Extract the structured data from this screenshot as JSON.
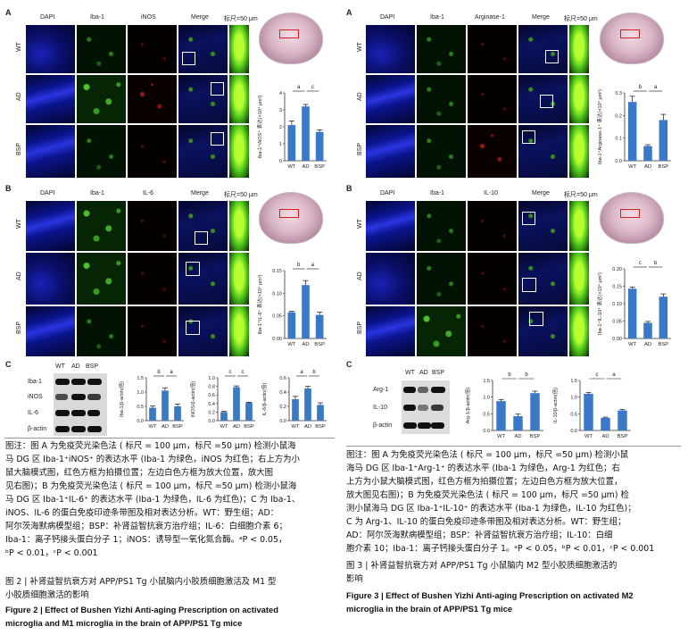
{
  "colors": {
    "dapi": "#1a23b8",
    "iba1": "#3a9a20",
    "red": "#a01818",
    "bar": "#3a78c8",
    "text": "#111111"
  },
  "left": {
    "panelA": {
      "label": "A",
      "headers": [
        "DAPI",
        "Iba-1",
        "iNOS",
        "Merge"
      ],
      "scale_text": "标尺=50 μm",
      "rows": [
        "WT",
        "AD",
        "BSP"
      ],
      "tile_scale": "100μm"
    },
    "panelB": {
      "label": "B",
      "headers": [
        "DAPI",
        "Iba-1",
        "IL-6",
        "Merge"
      ],
      "scale_text": "标尺=50 μm",
      "rows": [
        "WT",
        "AD",
        "BSP"
      ],
      "tile_scale": "100μm"
    },
    "panelC": {
      "label": "C",
      "wb_groups": [
        "WT",
        "AD",
        "BSP"
      ],
      "wb_rows": [
        "Iba-1",
        "iNOS",
        "IL-6",
        "β-actin"
      ]
    }
  },
  "right": {
    "panelA": {
      "label": "A",
      "headers": [
        "DAPI",
        "Iba-1",
        "Arginase-1",
        "Merge"
      ],
      "scale_text": "标尺=50 μm",
      "rows": [
        "WT",
        "AD",
        "BSP"
      ],
      "tile_scale": "100μm"
    },
    "panelB": {
      "label": "B",
      "headers": [
        "DAPI",
        "Iba-1",
        "IL-10",
        "Merge"
      ],
      "scale_text": "标尺=50 μm",
      "rows": [
        "WT",
        "AD",
        "BSP"
      ],
      "tile_scale": "100μm"
    },
    "panelC": {
      "label": "C",
      "wb_groups": [
        "WT",
        "AD",
        "BSP"
      ],
      "wb_rows": [
        "Arg-1",
        "IL-10",
        "β-actin"
      ]
    }
  },
  "chart_data": [
    {
      "id": "L_A",
      "type": "bar",
      "categories": [
        "WT",
        "AD",
        "BSP"
      ],
      "values": [
        2.1,
        3.2,
        1.7
      ],
      "errors": [
        0.25,
        0.12,
        0.12
      ],
      "ylabel": "Iba-1⁺iNOS⁺ 表达(×10⁴ μm²)",
      "ylim": [
        0,
        4
      ],
      "yticks": [
        "0",
        "1",
        "2",
        "3",
        "4"
      ],
      "sig": [
        {
          "from": 0,
          "to": 1,
          "label": "a"
        },
        {
          "from": 1,
          "to": 2,
          "label": "c"
        }
      ]
    },
    {
      "id": "L_B",
      "type": "bar",
      "categories": [
        "WT",
        "AD",
        "BSP"
      ],
      "values": [
        0.058,
        0.118,
        0.052
      ],
      "errors": [
        0.002,
        0.01,
        0.006
      ],
      "ylabel": "Iba-1⁺IL-6⁺ 表达(×10⁴ μm²)",
      "ylim": [
        0,
        0.15
      ],
      "yticks": [
        "0.00",
        "0.05",
        "0.10",
        "0.15"
      ],
      "sig": [
        {
          "from": 0,
          "to": 1,
          "label": "b"
        },
        {
          "from": 1,
          "to": 2,
          "label": "a"
        }
      ]
    },
    {
      "id": "L_C1",
      "type": "bar",
      "categories": [
        "WT",
        "AD",
        "BSP"
      ],
      "values": [
        0.45,
        1.05,
        0.5
      ],
      "errors": [
        0.06,
        0.1,
        0.08
      ],
      "ylabel": "Iba-1/β-actin(倍)",
      "ylim": [
        0,
        1.5
      ],
      "yticks": [
        "0.0",
        "0.5",
        "1.0",
        "1.5"
      ],
      "sig": [
        {
          "from": 0,
          "to": 1,
          "label": "b"
        },
        {
          "from": 1,
          "to": 2,
          "label": "a"
        }
      ]
    },
    {
      "id": "L_C2",
      "type": "bar",
      "categories": [
        "WT",
        "AD",
        "BSP"
      ],
      "values": [
        0.2,
        0.78,
        0.42
      ],
      "errors": [
        0.02,
        0.03,
        0.01
      ],
      "ylabel": "iNOS/β-actin(倍)",
      "ylim": [
        0,
        1.0
      ],
      "yticks": [
        "0.0",
        "0.2",
        "0.4",
        "0.6",
        "0.8",
        "1.0"
      ],
      "sig": [
        {
          "from": 0,
          "to": 1,
          "label": "c"
        },
        {
          "from": 1,
          "to": 2,
          "label": "c"
        }
      ]
    },
    {
      "id": "L_C3",
      "type": "bar",
      "categories": [
        "WT",
        "AD",
        "BSP"
      ],
      "values": [
        0.3,
        0.45,
        0.22
      ],
      "errors": [
        0.04,
        0.03,
        0.03
      ],
      "ylabel": "IL-6/β-actin(倍)",
      "ylim": [
        0,
        0.6
      ],
      "yticks": [
        "0.0",
        "0.2",
        "0.4",
        "0.6"
      ],
      "sig": [
        {
          "from": 0,
          "to": 1,
          "label": "a"
        },
        {
          "from": 1,
          "to": 2,
          "label": "b"
        }
      ]
    },
    {
      "id": "R_A",
      "type": "bar",
      "categories": [
        "WT",
        "AD",
        "BSP"
      ],
      "values": [
        0.26,
        0.065,
        0.18
      ],
      "errors": [
        0.025,
        0.006,
        0.025
      ],
      "ylabel": "Iba-1⁺Arginase-1⁺ 表达(×10⁴ μm²)",
      "ylim": [
        0,
        0.3
      ],
      "yticks": [
        "0.0",
        "0.1",
        "0.2",
        "0.3"
      ],
      "sig": [
        {
          "from": 0,
          "to": 1,
          "label": "b"
        },
        {
          "from": 1,
          "to": 2,
          "label": "a"
        }
      ]
    },
    {
      "id": "R_B",
      "type": "bar",
      "categories": [
        "WT",
        "AD",
        "BSP"
      ],
      "values": [
        0.143,
        0.045,
        0.12
      ],
      "errors": [
        0.005,
        0.004,
        0.008
      ],
      "ylabel": "Iba-1⁺IL-10⁺ 表达(×10⁴ μm²)",
      "ylim": [
        0,
        0.2
      ],
      "yticks": [
        "0.00",
        "0.05",
        "0.10",
        "0.15",
        "0.20"
      ],
      "sig": [
        {
          "from": 0,
          "to": 1,
          "label": "c"
        },
        {
          "from": 1,
          "to": 2,
          "label": "b"
        }
      ]
    },
    {
      "id": "R_C1",
      "type": "bar",
      "categories": [
        "WT",
        "AD",
        "BSP"
      ],
      "values": [
        0.88,
        0.43,
        1.12
      ],
      "errors": [
        0.05,
        0.06,
        0.06
      ],
      "ylabel": "Arg-1/β-actin(倍)",
      "ylim": [
        0,
        1.5
      ],
      "yticks": [
        "0.0",
        "0.5",
        "1.0",
        "1.5"
      ],
      "sig": [
        {
          "from": 0,
          "to": 1,
          "label": "b"
        },
        {
          "from": 1,
          "to": 2,
          "label": "b"
        }
      ]
    },
    {
      "id": "R_C2",
      "type": "bar",
      "categories": [
        "WT",
        "AD",
        "BSP"
      ],
      "values": [
        1.1,
        0.38,
        0.6
      ],
      "errors": [
        0.04,
        0.02,
        0.03
      ],
      "ylabel": "IL-10/β-actin(倍)",
      "ylim": [
        0,
        1.5
      ],
      "yticks": [
        "0.0",
        "0.5",
        "1.0",
        "1.5"
      ],
      "sig": [
        {
          "from": 0,
          "to": 1,
          "label": "c"
        },
        {
          "from": 1,
          "to": 2,
          "label": "a"
        }
      ]
    }
  ],
  "captions": {
    "left_note": [
      "图注：图 A 为免疫荧光染色法 ( 标尺 = 100 μm，标尺 =50 μm) 检测小鼠海",
      "马 DG 区 Iba-1⁺iNOS⁺ 的表达水平 (Iba-1 为绿色，iNOS 为红色；右上方为小",
      "鼠大脑模式图，红色方框为拍摄位置；左边白色方框为放大位置，放大图",
      "见右图)；B 为免疫荧光染色法 ( 标尺 = 100 μm，标尺 =50 μm) 检测小鼠海",
      "马 DG 区 Iba-1⁺IL-6⁺ 的表达水平 (Iba-1 为绿色，IL-6 为红色)；C 为 Iba-1、",
      "iNOS、IL-6 的蛋白免疫印迹条带图及相对表达分析。WT：野生组；AD：",
      "阿尔茨海默病模型组；BSP：补肾益智抗衰方治疗组；IL-6：白细胞介素 6；",
      "Iba-1：离子钙接头蛋白分子 1；iNOS：诱导型一氧化氮合酶。ᵃP < 0.05，",
      "ᵇP < 0.01，ᶜP < 0.001"
    ],
    "left_title": [
      "图 2  | 补肾益智抗衰方对 APP/PS1 Tg 小鼠脑内小胶质细胞激活及 M1 型",
      "小胶质细胞激活的影响"
    ],
    "left_en": [
      "Figure 2 | Effect of Bushen Yizhi Anti-aging Prescription on activated",
      "microglia and M1 microglia in the brain of APP/PS1 Tg mice"
    ],
    "right_note": [
      "图注：图 A 为免疫荧光染色法 ( 标尺 = 100 μm，标尺 =50 μm) 检测小鼠",
      "海马 DG 区 Iba-1⁺Arg-1⁺ 的表达水平 (Iba-1 为绿色，Arg-1 为红色；右",
      "上方为小鼠大脑模式图，红色方框为拍摄位置；左边白色方框为放大位置，",
      "放大图见右图)；B 为免疫荧光染色法 ( 标尺 = 100 μm，标尺 =50 μm) 检",
      "测小鼠海马 DG 区 Iba-1⁺IL-10⁺ 的表达水平 (Iba-1 为绿色，IL-10 为红色)；",
      "C 为 Arg-1、IL-10 的蛋白免疫印迹条带图及相对表达分析。WT：野生组；",
      "AD：阿尔茨海默病模型组；BSP：补肾益智抗衰方治疗组；IL-10：白细",
      "胞介素 10；Iba-1：离子钙接头蛋白分子 1。ᵃP < 0.05，ᵇP < 0.01，ᶜP < 0.001"
    ],
    "right_title": [
      "图 3  | 补肾益智抗衰方对 APP/PS1 Tg 小鼠脑内 M2 型小胶质细胞激活的",
      "影响"
    ],
    "right_en": [
      "Figure 3 | Effect of Bushen Yizhi Anti-aging Prescription on activated M2",
      "microglia in the brain of APP/PS1 Tg mice"
    ]
  }
}
